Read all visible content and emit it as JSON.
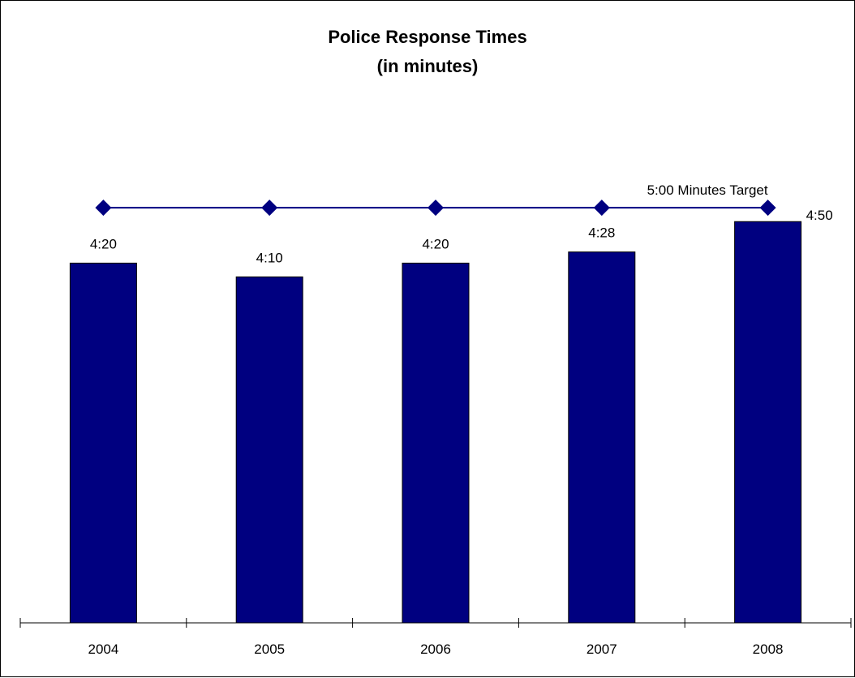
{
  "chart_data": {
    "type": "bar",
    "title": "Police Response Times",
    "subtitle": "(in minutes)",
    "categories": [
      "2004",
      "2005",
      "2006",
      "2007",
      "2008"
    ],
    "series": [
      {
        "type": "bar",
        "values": [
          4.333,
          4.167,
          4.333,
          4.467,
          4.833
        ],
        "data_labels": [
          "4:20",
          "4:10",
          "4:20",
          "4:28",
          "4:50"
        ],
        "color": "#000080"
      },
      {
        "type": "line",
        "values": [
          5,
          5,
          5,
          5,
          5
        ],
        "color": "#000080",
        "marker": "diamond",
        "annotation": "5:00 Minutes Target"
      }
    ],
    "ylim": [
      0,
      5.9
    ],
    "grid": false,
    "legend": "none"
  }
}
